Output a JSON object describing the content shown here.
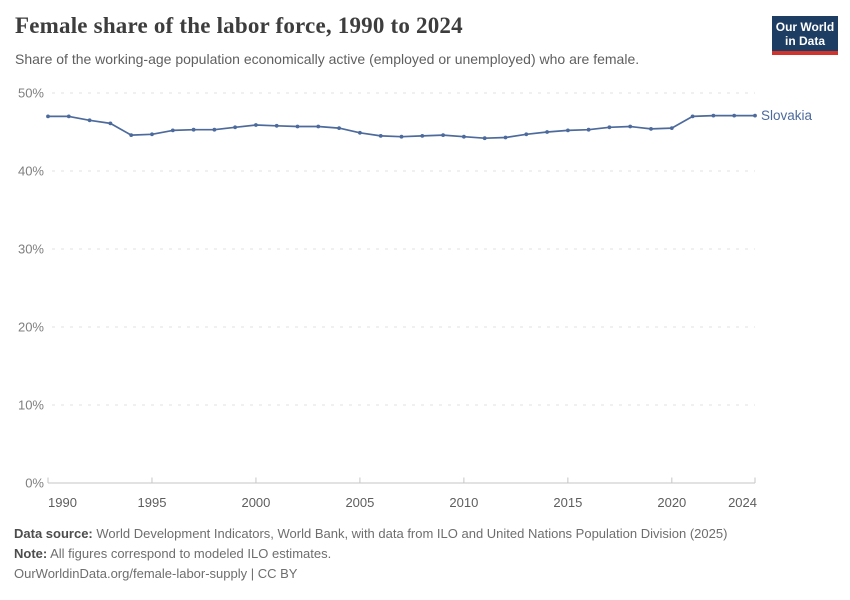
{
  "header": {
    "title": "Female share of the labor force, 1990 to 2024",
    "subtitle": "Share of the working-age population economically active (employed or unemployed) who are female."
  },
  "logo": {
    "line1": "Our World",
    "line2": "in Data",
    "bg_color": "#1d3d63",
    "accent_color": "#d0342c"
  },
  "chart_data": {
    "type": "line",
    "title": "Female share of the labor force, 1990 to 2024",
    "xlabel": "",
    "ylabel": "",
    "x": [
      1990,
      1991,
      1992,
      1993,
      1994,
      1995,
      1996,
      1997,
      1998,
      1999,
      2000,
      2001,
      2002,
      2003,
      2004,
      2005,
      2006,
      2007,
      2008,
      2009,
      2010,
      2011,
      2012,
      2013,
      2014,
      2015,
      2016,
      2017,
      2018,
      2019,
      2020,
      2021,
      2022,
      2023,
      2024
    ],
    "series": [
      {
        "name": "Slovakia",
        "color": "#4c6a9c",
        "values": [
          47.0,
          47.0,
          46.5,
          46.1,
          44.6,
          44.7,
          45.2,
          45.3,
          45.3,
          45.6,
          45.9,
          45.8,
          45.7,
          45.7,
          45.5,
          44.9,
          44.5,
          44.4,
          44.5,
          44.6,
          44.4,
          44.2,
          44.3,
          44.7,
          45.0,
          45.2,
          45.3,
          45.6,
          45.7,
          45.4,
          45.5,
          47.0,
          47.1,
          47.1,
          47.1
        ]
      }
    ],
    "ylim": [
      0,
      50
    ],
    "yticks": [
      0,
      10,
      20,
      30,
      40,
      50
    ],
    "ytick_suffix": "%",
    "xticks": [
      1990,
      1995,
      2000,
      2005,
      2010,
      2015,
      2020,
      2024
    ],
    "grid": "dashed-horizontal",
    "legend": "end-of-line-label"
  },
  "colors": {
    "grid": "#e0e0e0",
    "axis": "#c6c6c6",
    "ytick_label": "#7f7f7f",
    "xtick_label": "#5e5e5e"
  },
  "footer": {
    "data_source_label": "Data source:",
    "data_source_text": "World Development Indicators, World Bank, with data from ILO and United Nations Population Division (2025)",
    "note_label": "Note:",
    "note_text": "All figures correspond to modeled ILO estimates.",
    "link_text": "OurWorldinData.org/female-labor-supply | CC BY"
  }
}
